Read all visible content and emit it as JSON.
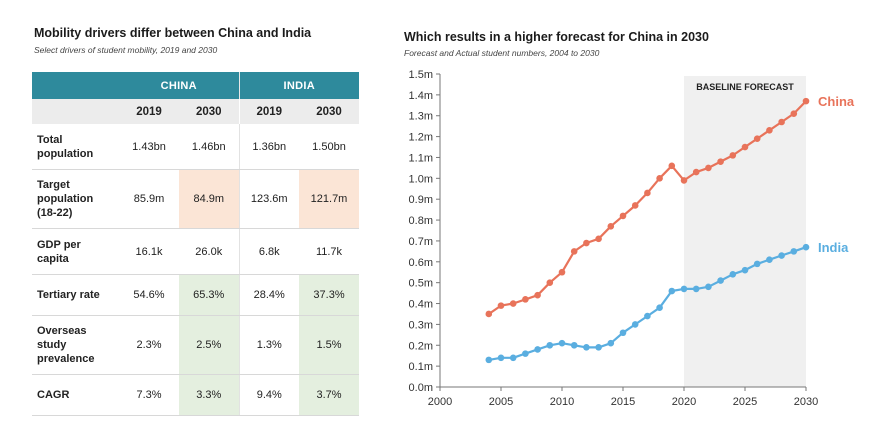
{
  "table_panel": {
    "title": "Mobility drivers differ between China and India",
    "subtitle": "Select drivers of student mobility, 2019 and 2030",
    "countries": [
      "CHINA",
      "INDIA"
    ],
    "years": [
      "2019",
      "2030",
      "2019",
      "2030"
    ],
    "rows": [
      {
        "label_lines": [
          "Total",
          "population"
        ],
        "values": [
          "1.43bn",
          "1.46bn",
          "1.36bn",
          "1.50bn"
        ]
      },
      {
        "label_lines": [
          "Target",
          "population",
          "(18-22)"
        ],
        "values": [
          "85.9m",
          "84.9m",
          "123.6m",
          "121.7m"
        ]
      },
      {
        "label_lines": [
          "GDP per",
          "capita"
        ],
        "values": [
          "16.1k",
          "26.0k",
          "6.8k",
          "11.7k"
        ]
      },
      {
        "label_lines": [
          "Tertiary rate"
        ],
        "values": [
          "54.6%",
          "65.3%",
          "28.4%",
          "37.3%"
        ]
      },
      {
        "label_lines": [
          "Overseas",
          "study",
          "prevalence"
        ],
        "values": [
          "2.3%",
          "2.5%",
          "1.3%",
          "1.5%"
        ]
      },
      {
        "label_lines": [
          "CAGR"
        ],
        "values": [
          "7.3%",
          "3.3%",
          "9.4%",
          "3.7%"
        ]
      }
    ]
  },
  "chart_panel": {
    "title": "Which results in a higher forecast for China in 2030",
    "subtitle": "Forecast and Actual student numbers, 2004 to 2030"
  },
  "colors": {
    "header_teal": "#2e8a9c",
    "highlight_orange": "#fbe5d6",
    "highlight_green": "#e4efdf",
    "china_series": "#e8735a",
    "india_series": "#5aaee0",
    "forecast_band": "#f0f0f0"
  },
  "chart_data": {
    "type": "line",
    "title": "Which results in a higher forecast for China in 2030",
    "subtitle": "Forecast and Actual student numbers, 2004 to 2030",
    "xlim": [
      2000,
      2030
    ],
    "xticks": [
      2000,
      2005,
      2010,
      2015,
      2020,
      2025,
      2030
    ],
    "ylim": [
      0,
      1.5
    ],
    "yticks": [
      0,
      0.1,
      0.2,
      0.3,
      0.4,
      0.5,
      0.6,
      0.7,
      0.8,
      0.9,
      1.0,
      1.1,
      1.2,
      1.3,
      1.4,
      1.5
    ],
    "ytick_labels": [
      "0.0m",
      "0.1m",
      "0.2m",
      "0.3m",
      "0.4m",
      "0.5m",
      "0.6m",
      "0.7m",
      "0.8m",
      "0.9m",
      "1.0m",
      "1.1m",
      "1.2m",
      "1.3m",
      "1.4m",
      "1.5m"
    ],
    "annotation": {
      "label": "BASELINE FORECAST",
      "from": 2020,
      "to": 2030
    },
    "grid": false,
    "x": [
      2004,
      2005,
      2006,
      2007,
      2008,
      2009,
      2010,
      2011,
      2012,
      2013,
      2014,
      2015,
      2016,
      2017,
      2018,
      2019,
      2020,
      2021,
      2022,
      2023,
      2024,
      2025,
      2026,
      2027,
      2028,
      2029,
      2030
    ],
    "series": [
      {
        "name": "China",
        "color": "#e8735a",
        "values": [
          0.35,
          0.39,
          0.4,
          0.42,
          0.44,
          0.5,
          0.55,
          0.65,
          0.69,
          0.71,
          0.77,
          0.82,
          0.87,
          0.93,
          1.0,
          1.06,
          0.99,
          1.03,
          1.05,
          1.08,
          1.11,
          1.15,
          1.19,
          1.23,
          1.27,
          1.31,
          1.37
        ]
      },
      {
        "name": "India",
        "color": "#5aaee0",
        "values": [
          0.13,
          0.14,
          0.14,
          0.16,
          0.18,
          0.2,
          0.21,
          0.2,
          0.19,
          0.19,
          0.21,
          0.26,
          0.3,
          0.34,
          0.38,
          0.46,
          0.47,
          0.47,
          0.48,
          0.51,
          0.54,
          0.56,
          0.59,
          0.61,
          0.63,
          0.65,
          0.67
        ]
      }
    ]
  }
}
